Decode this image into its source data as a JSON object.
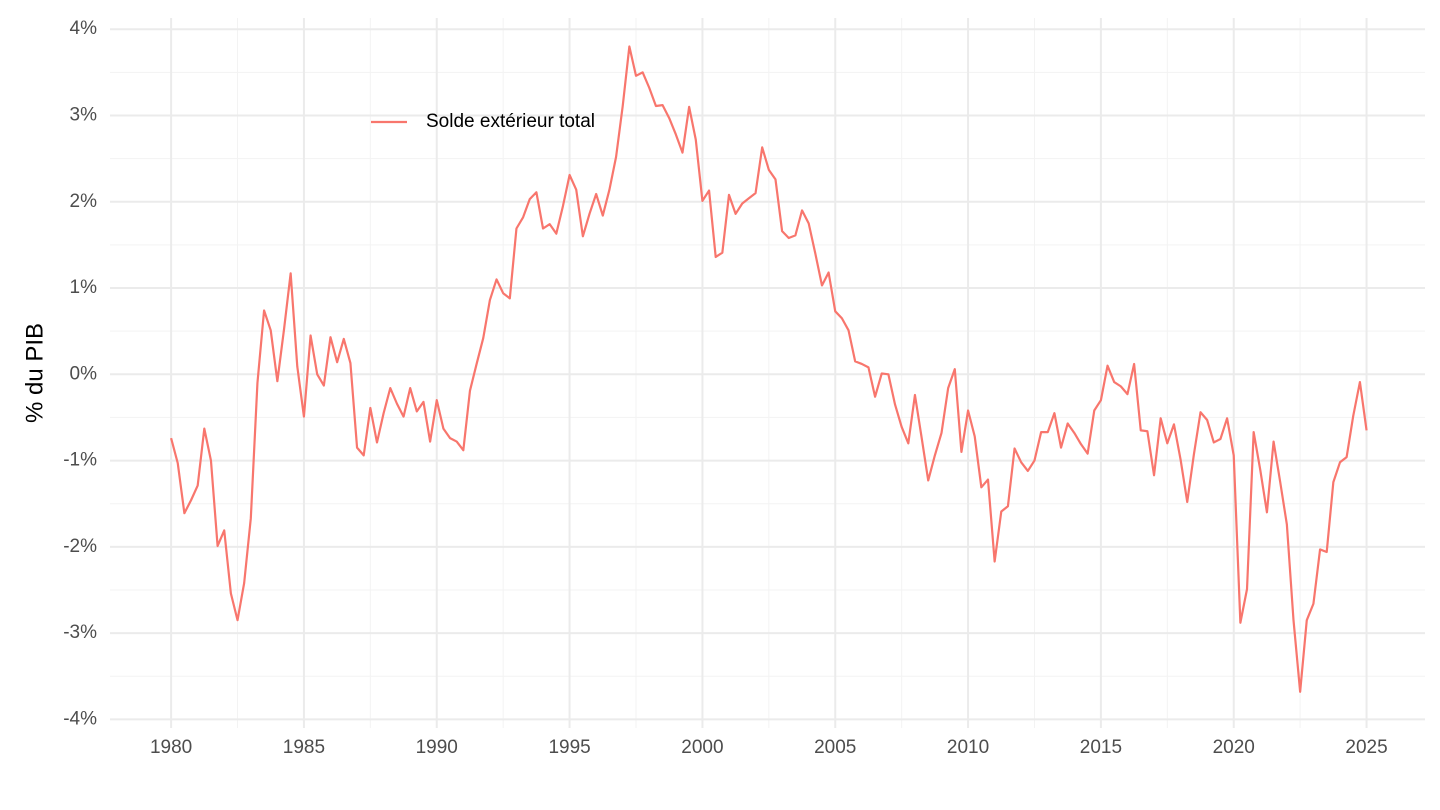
{
  "chart_data": {
    "type": "line",
    "y_label": "% du PIB",
    "x": [
      1980,
      1980.25,
      1980.5,
      1980.75,
      1981,
      1981.25,
      1981.5,
      1981.75,
      1982,
      1982.25,
      1982.5,
      1982.75,
      1983,
      1983.25,
      1983.5,
      1983.75,
      1984,
      1984.25,
      1984.5,
      1984.75,
      1985,
      1985.25,
      1985.5,
      1985.75,
      1986,
      1986.25,
      1986.5,
      1986.75,
      1987,
      1987.25,
      1987.5,
      1987.75,
      1988,
      1988.25,
      1988.5,
      1988.75,
      1989,
      1989.25,
      1989.5,
      1989.75,
      1990,
      1990.25,
      1990.5,
      1990.75,
      1991,
      1991.25,
      1991.5,
      1991.75,
      1992,
      1992.25,
      1992.5,
      1992.75,
      1993,
      1993.25,
      1993.5,
      1993.75,
      1994,
      1994.25,
      1994.5,
      1994.75,
      1995,
      1995.25,
      1995.5,
      1995.75,
      1996,
      1996.25,
      1996.5,
      1996.75,
      1997,
      1997.25,
      1997.5,
      1997.75,
      1998,
      1998.25,
      1998.5,
      1998.75,
      1999,
      1999.25,
      1999.5,
      1999.75,
      2000,
      2000.25,
      2000.5,
      2000.75,
      2001,
      2001.25,
      2001.5,
      2001.75,
      2002,
      2002.25,
      2002.5,
      2002.75,
      2003,
      2003.25,
      2003.5,
      2003.75,
      2004,
      2004.25,
      2004.5,
      2004.75,
      2005,
      2005.25,
      2005.5,
      2005.75,
      2006,
      2006.25,
      2006.5,
      2006.75,
      2007,
      2007.25,
      2007.5,
      2007.75,
      2008,
      2008.25,
      2008.5,
      2008.75,
      2009,
      2009.25,
      2009.5,
      2009.75,
      2010,
      2010.25,
      2010.5,
      2010.75,
      2011,
      2011.25,
      2011.5,
      2011.75,
      2012,
      2012.25,
      2012.5,
      2012.75,
      2013,
      2013.25,
      2013.5,
      2013.75,
      2014,
      2014.25,
      2014.5,
      2014.75,
      2015,
      2015.25,
      2015.5,
      2015.75,
      2016,
      2016.25,
      2016.5,
      2016.75,
      2017,
      2017.25,
      2017.5,
      2017.75,
      2018,
      2018.25,
      2018.5,
      2018.75,
      2019,
      2019.25,
      2019.5,
      2019.75,
      2020,
      2020.25,
      2020.5,
      2020.75,
      2021,
      2021.25,
      2021.5,
      2021.75,
      2022,
      2022.25,
      2022.5,
      2022.75,
      2023,
      2023.25,
      2023.5,
      2023.75,
      2024,
      2024.25,
      2024.5,
      2024.75,
      2025
    ],
    "series": [
      {
        "name": "Solde extérieur total",
        "color": "#f8766d",
        "values": [
          -0.74,
          -1.03,
          -1.61,
          -1.46,
          -1.29,
          -0.63,
          -1.0,
          -1.99,
          -1.81,
          -2.54,
          -2.85,
          -2.42,
          -1.67,
          -0.1,
          0.74,
          0.51,
          -0.08,
          0.52,
          1.17,
          0.09,
          -0.49,
          0.45,
          0,
          -0.13,
          0.43,
          0.14,
          0.41,
          0.13,
          -0.85,
          -0.94,
          -0.39,
          -0.79,
          -0.45,
          -0.16,
          -0.34,
          -0.49,
          -0.16,
          -0.43,
          -0.32,
          -0.78,
          -0.3,
          -0.63,
          -0.74,
          -0.78,
          -0.88,
          -0.19,
          0.12,
          0.42,
          0.86,
          1.1,
          0.94,
          0.88,
          1.69,
          1.82,
          2.03,
          2.11,
          1.69,
          1.74,
          1.63,
          1.95,
          2.31,
          2.14,
          1.6,
          1.86,
          2.09,
          1.84,
          2.14,
          2.52,
          3.11,
          3.8,
          3.46,
          3.5,
          3.32,
          3.11,
          3.12,
          2.97,
          2.78,
          2.57,
          3.1,
          2.72,
          2.01,
          2.13,
          1.36,
          1.41,
          2.08,
          1.86,
          1.98,
          2.04,
          2.1,
          2.63,
          2.37,
          2.26,
          1.66,
          1.58,
          1.61,
          1.9,
          1.75,
          1.4,
          1.03,
          1.18,
          0.73,
          0.65,
          0.51,
          0.15,
          0.12,
          0.08,
          -0.26,
          0.01,
          0,
          -0.35,
          -0.61,
          -0.8,
          -0.24,
          -0.73,
          -1.23,
          -0.94,
          -0.68,
          -0.16,
          0.06,
          -0.9,
          -0.42,
          -0.72,
          -1.31,
          -1.22,
          -2.17,
          -1.59,
          -1.53,
          -0.86,
          -1.02,
          -1.12,
          -1.0,
          -0.67,
          -0.67,
          -0.45,
          -0.85,
          -0.57,
          -0.68,
          -0.81,
          -0.92,
          -0.42,
          -0.3,
          0.1,
          -0.09,
          -0.14,
          -0.23,
          0.12,
          -0.65,
          -0.66,
          -1.17,
          -0.51,
          -0.8,
          -0.58,
          -0.99,
          -1.48,
          -0.93,
          -0.44,
          -0.53,
          -0.79,
          -0.75,
          -0.51,
          -0.94,
          -2.88,
          -2.49,
          -0.67,
          -1.11,
          -1.6,
          -0.78,
          -1.25,
          -1.74,
          -2.85,
          -3.68,
          -2.85,
          -2.66,
          -2.03,
          -2.06,
          -1.25,
          -1.02,
          -0.96,
          -0.48,
          -0.09,
          -0.65
        ]
      }
    ],
    "xlim": [
      1977.7,
      2027.2
    ],
    "xticks": [
      1980,
      1985,
      1990,
      1995,
      2000,
      2005,
      2010,
      2015,
      2020,
      2025
    ],
    "ylim": [
      -4.1,
      4.13
    ],
    "yticks": [
      {
        "value": -4,
        "label": "-4%"
      },
      {
        "value": -3,
        "label": "-3%"
      },
      {
        "value": -2,
        "label": "-2%"
      },
      {
        "value": -1,
        "label": "-1%"
      },
      {
        "value": 0,
        "label": "0%"
      },
      {
        "value": 1,
        "label": "1%"
      },
      {
        "value": 2,
        "label": "2%"
      },
      {
        "value": 3,
        "label": "3%"
      },
      {
        "value": 4,
        "label": "4%"
      }
    ],
    "grid": true,
    "legend": "top-left-inside"
  }
}
